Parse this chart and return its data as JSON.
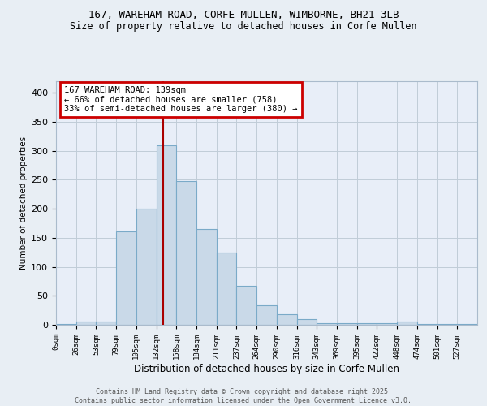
{
  "title_line1": "167, WAREHAM ROAD, CORFE MULLEN, WIMBORNE, BH21 3LB",
  "title_line2": "Size of property relative to detached houses in Corfe Mullen",
  "xlabel": "Distribution of detached houses by size in Corfe Mullen",
  "ylabel": "Number of detached properties",
  "bin_labels": [
    "0sqm",
    "26sqm",
    "53sqm",
    "79sqm",
    "105sqm",
    "132sqm",
    "158sqm",
    "184sqm",
    "211sqm",
    "237sqm",
    "264sqm",
    "290sqm",
    "316sqm",
    "343sqm",
    "369sqm",
    "395sqm",
    "422sqm",
    "448sqm",
    "474sqm",
    "501sqm",
    "527sqm"
  ],
  "bar_heights": [
    2,
    5,
    5,
    161,
    200,
    310,
    248,
    165,
    125,
    67,
    33,
    18,
    10,
    3,
    3,
    3,
    3,
    5,
    2,
    2,
    2
  ],
  "bar_color": "#c9d9e8",
  "bar_edge_color": "#7aaac8",
  "vline_x": 5.35,
  "vline_color": "#aa0000",
  "annotation_text": "167 WAREHAM ROAD: 139sqm\n← 66% of detached houses are smaller (758)\n33% of semi-detached houses are larger (380) →",
  "annotation_box_color": "#ffffff",
  "annotation_box_edge_color": "#cc0000",
  "ylim": [
    0,
    420
  ],
  "yticks": [
    0,
    50,
    100,
    150,
    200,
    250,
    300,
    350,
    400
  ],
  "footer_text": "Contains HM Land Registry data © Crown copyright and database right 2025.\nContains public sector information licensed under the Open Government Licence v3.0.",
  "background_color": "#e8eef4",
  "plot_background_color": "#e8eef8",
  "grid_color": "#c0ccd8",
  "title_fontsize": 9,
  "subtitle_fontsize": 8.5
}
